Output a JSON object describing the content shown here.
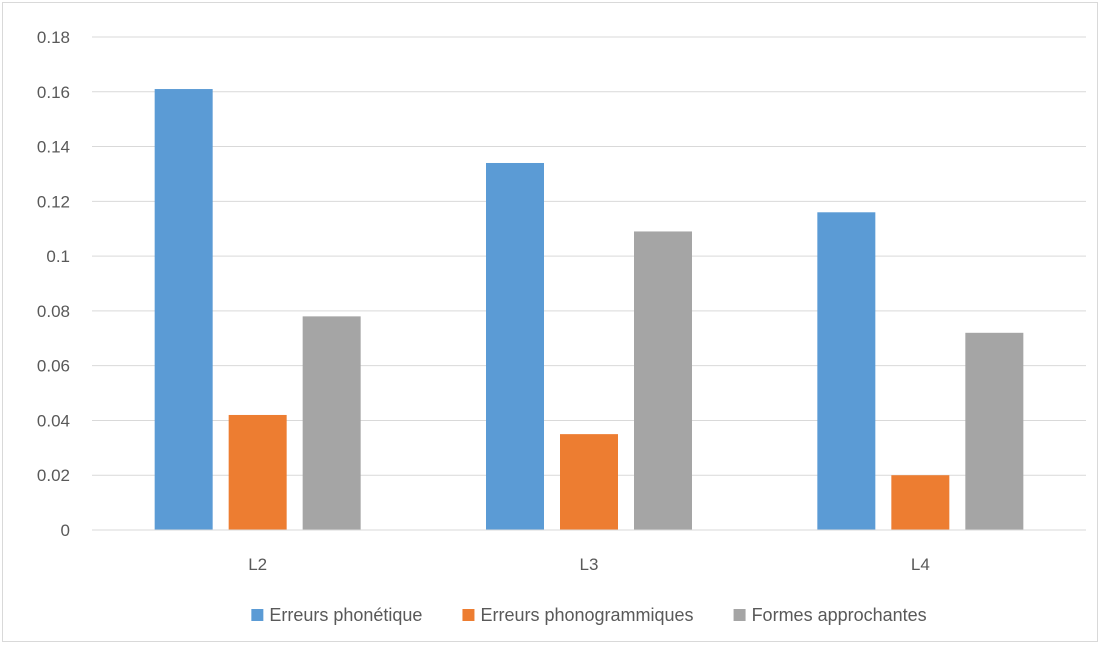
{
  "chart_data": {
    "type": "bar",
    "title": "",
    "xlabel": "",
    "ylabel": "",
    "categories": [
      "L2",
      "L3",
      "L4"
    ],
    "series": [
      {
        "name": "Erreurs phonétique",
        "color": "#5b9bd5",
        "values": [
          0.161,
          0.134,
          0.116
        ]
      },
      {
        "name": "Erreurs phonogrammiques",
        "color": "#ed7d31",
        "values": [
          0.042,
          0.035,
          0.02
        ]
      },
      {
        "name": "Formes approchantes",
        "color": "#a5a5a5",
        "values": [
          0.078,
          0.109,
          0.072
        ]
      }
    ],
    "y_ticks": [
      "0",
      "0.02",
      "0.04",
      "0.06",
      "0.08",
      "0.1",
      "0.12",
      "0.14",
      "0.16",
      "0.18"
    ],
    "ylim": [
      0,
      0.18
    ],
    "grid": true,
    "legend_position": "bottom"
  }
}
